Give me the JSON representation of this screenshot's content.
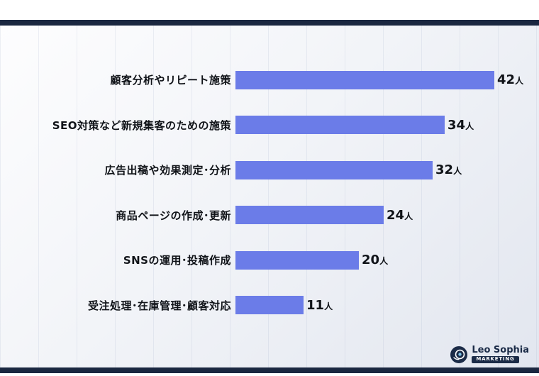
{
  "chart_data": {
    "type": "bar",
    "orientation": "horizontal",
    "title": "",
    "categories": [
      "顧客分析やリピート施策",
      "SEO対策など新規集客のための施策",
      "広告出稿や効果測定･分析",
      "商品ページの作成･更新",
      "SNSの運用･投稿作成",
      "受注処理･在庫管理･顧客対応"
    ],
    "values": [
      42,
      34,
      32,
      24,
      20,
      11
    ],
    "unit": "人",
    "xlim": [
      0,
      42
    ],
    "bar_color": "#6b7ce8",
    "grid": "faint-vertical-lines",
    "legend": "none"
  },
  "colors": {
    "bar": "#6b7ce8",
    "accent_navy": "#1a2740",
    "background_gradient_start": "#fdfdfe",
    "background_gradient_end": "#e2e6ef"
  },
  "logo": {
    "brand": "Leo Sophia",
    "sub": "MARKETING"
  }
}
